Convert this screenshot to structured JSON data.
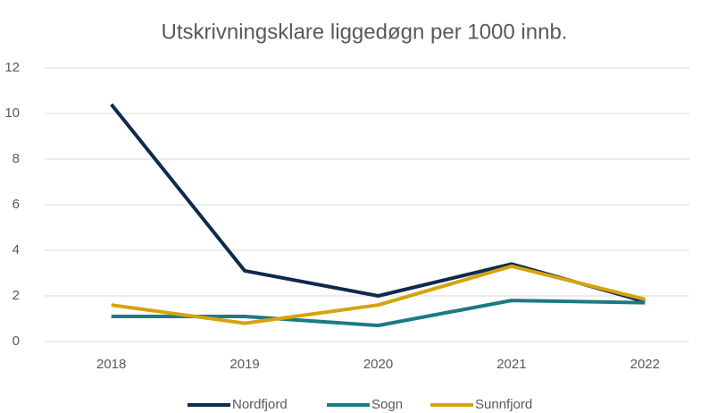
{
  "chart_data": {
    "type": "line",
    "title": "Utskrivningsklare liggedøgn per 1000 innb.",
    "categories": [
      "2018",
      "2019",
      "2020",
      "2021",
      "2022"
    ],
    "series": [
      {
        "name": "Nordfjord",
        "color": "#0e2a4d",
        "values": [
          10.4,
          3.1,
          2.0,
          3.4,
          1.75
        ]
      },
      {
        "name": "Sogn",
        "color": "#1b7b81",
        "values": [
          1.1,
          1.1,
          0.7,
          1.8,
          1.7
        ]
      },
      {
        "name": "Sunnfjord",
        "color": "#d6a30c",
        "values": [
          1.6,
          0.8,
          1.6,
          3.3,
          1.85
        ]
      }
    ],
    "ylim": [
      0,
      12
    ],
    "yticks": [
      0,
      2,
      4,
      6,
      8,
      10,
      12
    ],
    "grid": true,
    "legend": "bottom"
  }
}
